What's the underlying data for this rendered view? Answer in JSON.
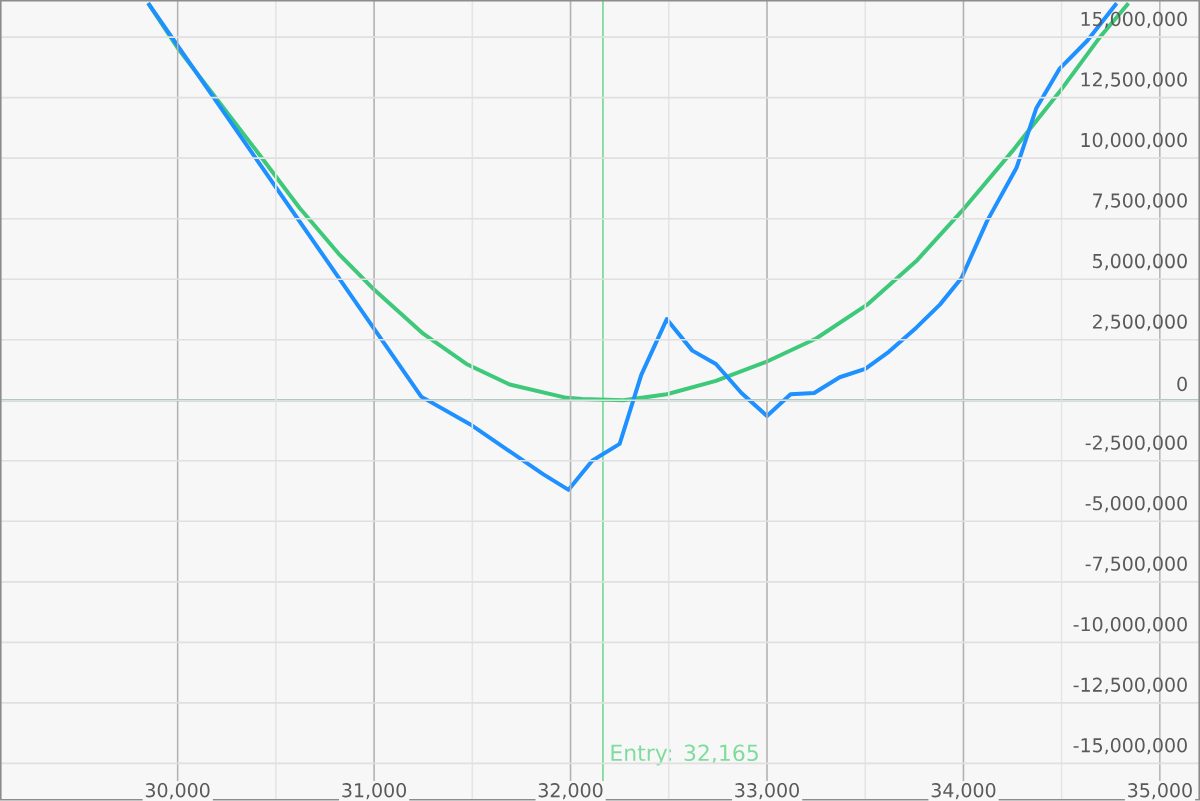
{
  "chart_data": {
    "type": "line",
    "xlim": [
      29100,
      35200
    ],
    "ylim": [
      -16500000,
      16500000
    ],
    "xticks": [
      {
        "value": 30000,
        "label": "30,000"
      },
      {
        "value": 31000,
        "label": "31,000"
      },
      {
        "value": 32000,
        "label": "32,000"
      },
      {
        "value": 33000,
        "label": "33,000"
      },
      {
        "value": 34000,
        "label": "34,000"
      },
      {
        "value": 35000,
        "label": "35,000"
      }
    ],
    "yticks": [
      {
        "value": -15000000,
        "label": "-15,000,000"
      },
      {
        "value": -12500000,
        "label": "-12,500,000"
      },
      {
        "value": -10000000,
        "label": "-10,000,000"
      },
      {
        "value": -7500000,
        "label": "-7,500,000"
      },
      {
        "value": -5000000,
        "label": "-5,000,000"
      },
      {
        "value": -2500000,
        "label": "-2,500,000"
      },
      {
        "value": 0,
        "label": "0"
      },
      {
        "value": 2500000,
        "label": "2,500,000"
      },
      {
        "value": 5000000,
        "label": "5,000,000"
      },
      {
        "value": 7500000,
        "label": "7,500,000"
      },
      {
        "value": 10000000,
        "label": "10,000,000"
      },
      {
        "value": 12500000,
        "label": "12,500,000"
      },
      {
        "value": 15000000,
        "label": "15,000,000"
      }
    ],
    "grid": true,
    "series": [
      {
        "color": "#3ec97a",
        "x": [
          29850,
          30000,
          30430,
          30620,
          30820,
          30990,
          31250,
          31470,
          31690,
          31980,
          32060,
          32270,
          32490,
          32740,
          33000,
          33250,
          33510,
          33760,
          33990,
          34250,
          34490,
          34690,
          34840
        ],
        "values": [
          16400000,
          14550000,
          10000000,
          7950000,
          6050000,
          4650000,
          2750000,
          1500000,
          650000,
          100000,
          50000,
          0,
          250000,
          800000,
          1600000,
          2550000,
          3950000,
          5750000,
          7800000,
          10300000,
          12750000,
          14950000,
          16400000
        ]
      },
      {
        "color": "#1e90ff",
        "x": [
          29850,
          31240,
          31490,
          31860,
          31990,
          32110,
          32250,
          32360,
          32490,
          32620,
          32740,
          32870,
          33000,
          33120,
          33240,
          33370,
          33500,
          33620,
          33760,
          33880,
          33990,
          34120,
          34270,
          34370,
          34490,
          34630,
          34780
        ],
        "values": [
          16400000,
          150000,
          -1000000,
          -3050000,
          -3700000,
          -2500000,
          -1800000,
          1050000,
          3350000,
          2050000,
          1500000,
          300000,
          -650000,
          250000,
          300000,
          950000,
          1300000,
          2000000,
          3000000,
          3950000,
          5050000,
          7400000,
          9600000,
          12050000,
          13700000,
          14850000,
          16400000
        ]
      }
    ],
    "ref_lines": [
      {
        "axis": "x",
        "value": 32165,
        "label": "Entry: 32,165",
        "color": "#7fdc9e"
      },
      {
        "axis": "y",
        "value": 0,
        "color": "#5f9f7c"
      }
    ]
  }
}
